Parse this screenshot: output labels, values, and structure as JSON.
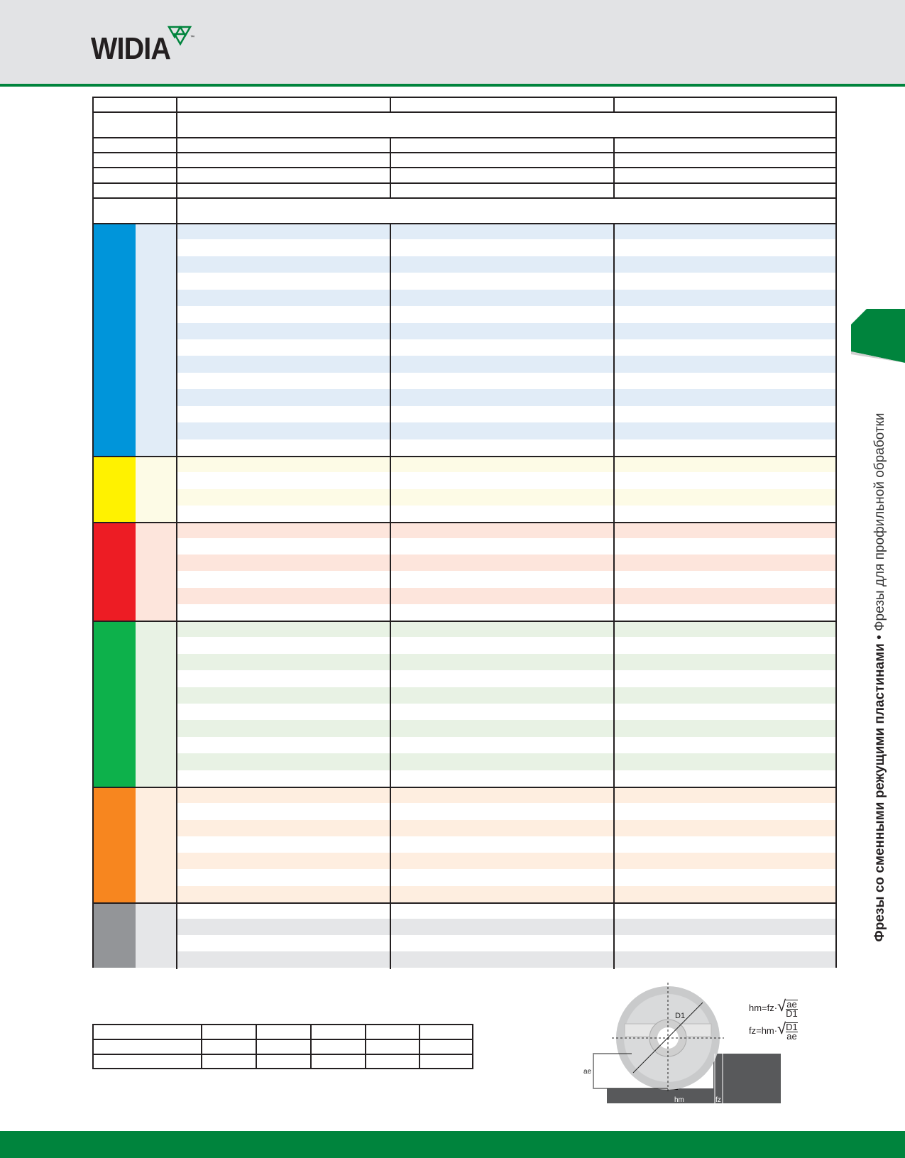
{
  "header": {
    "logo_text": "WIDIA",
    "logo_tm": "™",
    "brand_color": "#00843d"
  },
  "side_title": {
    "bold": "Фрезы со сменными режущими пластинами",
    "bullet": "•",
    "light": "Фрезы для профильной обработки"
  },
  "material_groups": [
    {
      "color": "#0095da",
      "tint": "#e1ecf7"
    },
    {
      "color": "#fff200",
      "tint": "#fdfbe6"
    },
    {
      "color": "#ed1c24",
      "tint": "#fde5dc"
    },
    {
      "color": "#0db14b",
      "tint": "#e8f2e4"
    },
    {
      "color": "#f7861f",
      "tint": "#feeee0"
    },
    {
      "color": "#939598",
      "tint": "#e5e6e8"
    }
  ],
  "diagram": {
    "label_d1": "D1",
    "label_ae": "ae",
    "label_hm": "hm",
    "label_fz": "fz",
    "formula1": {
      "lhs": "hm=fz·",
      "num": "ae",
      "den": "D1"
    },
    "formula2": {
      "lhs": "fz=hm·",
      "num": "D1",
      "den": "ae"
    }
  }
}
